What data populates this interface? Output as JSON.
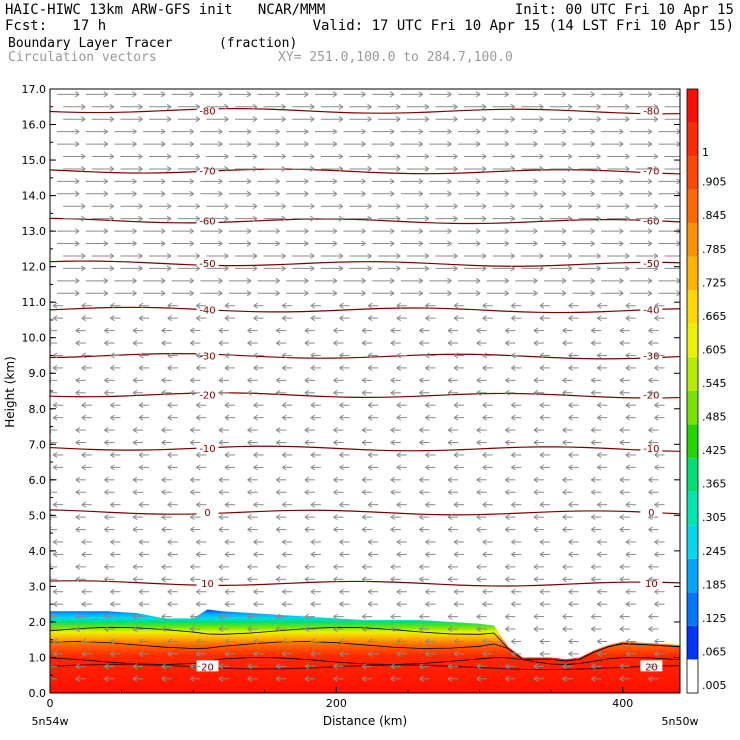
{
  "header": {
    "line1_left": "HAIC-HIWC 13km ARW-GFS init   NCAR/MMM",
    "line1_right": "Init: 00 UTC Fri 10 Apr 15",
    "line2_left": "Fcst:   17 h",
    "line2_right": "Valid: 17 UTC Fri 10 Apr 15 (14 LST Fri 10 Apr 15)",
    "field_name": "Boundary Layer Tracer",
    "field_units": "(fraction)",
    "vector_label": "Circulation vectors",
    "cross_section": "XY= 251.0,100.0 to 284.7,100.0"
  },
  "axes": {
    "xlabel": "Distance (km)",
    "ylabel": "Height (km)",
    "x_left_label": "5n54w",
    "x_right_label": "5n50w"
  },
  "colors": {
    "contour": "#7a0000",
    "vector": "#8a8a8a",
    "frame": "#000000"
  },
  "colorbar": {
    "labels": [
      ".005",
      ".065",
      ".125",
      ".185",
      ".245",
      ".305",
      ".365",
      ".425",
      ".485",
      ".545",
      ".605",
      ".665",
      ".725",
      ".785",
      ".845",
      ".905",
      "1"
    ],
    "colors": [
      "#ffffff",
      "#0033ff",
      "#0077ff",
      "#00a7ff",
      "#00d8ee",
      "#00e6b0",
      "#00e070",
      "#22d600",
      "#77e200",
      "#b6ec00",
      "#ebf200",
      "#ffd800",
      "#ffb400",
      "#ff9000",
      "#ff6a00",
      "#ff4600",
      "#ff2a00",
      "#ff0e00"
    ]
  },
  "chart_data": {
    "type": "heatmap",
    "title": "Boundary Layer Tracer",
    "units": "(fraction)",
    "xlabel": "Distance (km)",
    "ylabel": "Height (km)",
    "xlim": [
      0,
      440
    ],
    "ylim": [
      0,
      17
    ],
    "x_ticks": [
      0,
      200,
      400
    ],
    "y_ticks": [
      0.0,
      1.0,
      2.0,
      3.0,
      4.0,
      5.0,
      6.0,
      7.0,
      8.0,
      9.0,
      10.0,
      11.0,
      12.0,
      13.0,
      14.0,
      15.0,
      16.0,
      17.0
    ],
    "tracer_top_height_km": {
      "x": [
        0,
        20,
        40,
        60,
        80,
        100,
        110,
        120,
        140,
        160,
        180,
        200,
        220,
        240,
        260,
        280,
        300,
        310,
        320,
        330,
        340,
        350,
        360,
        370,
        380,
        390,
        400,
        420,
        440
      ],
      "top": [
        2.3,
        2.3,
        2.3,
        2.25,
        2.1,
        2.1,
        2.35,
        2.3,
        2.25,
        2.2,
        2.15,
        2.1,
        2.05,
        2.05,
        2.05,
        2.0,
        1.95,
        1.9,
        1.3,
        1.0,
        1.0,
        1.0,
        0.95,
        1.0,
        1.2,
        1.35,
        1.45,
        1.4,
        1.35
      ]
    },
    "temperature_contours_C": [
      {
        "label": "20",
        "level_km": 0.75
      },
      {
        "label": "10",
        "level_km": 3.1
      },
      {
        "label": "0",
        "level_km": 5.1
      },
      {
        "label": "-10",
        "level_km": 6.9
      },
      {
        "label": "-20",
        "level_km": 8.4
      },
      {
        "label": "-30",
        "level_km": 9.5
      },
      {
        "label": "-40",
        "level_km": 10.8
      },
      {
        "label": "-50",
        "level_km": 12.1
      },
      {
        "label": "-60",
        "level_km": 13.3
      },
      {
        "label": "-70",
        "level_km": 14.7
      },
      {
        "label": "-80",
        "level_km": 16.4
      }
    ],
    "vector_direction": {
      "above_km": 11.0,
      "upper": "eastward",
      "lower": "westward"
    }
  }
}
